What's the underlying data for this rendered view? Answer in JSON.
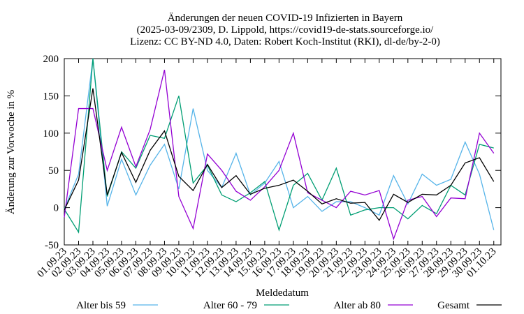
{
  "chart_data": {
    "type": "line",
    "title": [
      "Änderungen der neuen COVID-19 Infizierten in Bayern",
      "(2025-03-09/2309, D. Lippold, https://covid19-de-stats.sourceforge.io/",
      "Lizenz: CC BY-ND 4.0, Daten: Robert Koch-Institut (RKI), dl-de/by-2-0)"
    ],
    "x_label": "Meldedatum",
    "y_label": "Änderung zur Vorwoche in %",
    "categories": [
      "01.09.23",
      "02.09.23",
      "03.09.23",
      "04.09.23",
      "05.09.23",
      "06.09.23",
      "07.09.23",
      "08.09.23",
      "09.09.23",
      "10.09.23",
      "11.09.23",
      "12.09.23",
      "13.09.23",
      "14.09.23",
      "15.09.23",
      "16.09.23",
      "17.09.23",
      "18.09.23",
      "19.09.23",
      "20.09.23",
      "21.09.23",
      "22.09.23",
      "23.09.23",
      "24.09.23",
      "25.09.23",
      "26.09.23",
      "27.09.23",
      "28.09.23",
      "29.09.23",
      "30.09.23",
      "01.10.23"
    ],
    "series": [
      {
        "name": "Alter bis 59",
        "color": "#56b4e9",
        "values": [
          -2,
          45,
          200,
          2,
          65,
          17,
          57,
          85,
          25,
          133,
          50,
          27,
          73,
          17,
          33,
          62,
          0,
          15,
          -5,
          8,
          8,
          0,
          -10,
          43,
          5,
          45,
          30,
          38,
          88,
          45,
          -30
        ]
      },
      {
        "name": "Alter 60 - 79",
        "color": "#009e73",
        "values": [
          -2,
          -33,
          200,
          15,
          75,
          53,
          97,
          93,
          150,
          33,
          57,
          17,
          8,
          20,
          35,
          -30,
          30,
          46,
          10,
          53,
          -10,
          -3,
          0,
          0,
          -15,
          3,
          -8,
          30,
          17,
          85,
          80
        ]
      },
      {
        "name": "Alter ab 80",
        "color": "#9400d3",
        "values": [
          -13,
          133,
          133,
          50,
          108,
          55,
          105,
          185,
          15,
          -28,
          72,
          50,
          22,
          10,
          28,
          50,
          100,
          20,
          10,
          0,
          22,
          17,
          23,
          -42,
          10,
          15,
          -12,
          13,
          12,
          100,
          73
        ]
      },
      {
        "name": "Gesamt",
        "color": "#000000",
        "values": [
          -3,
          37,
          160,
          17,
          74,
          34,
          77,
          103,
          42,
          23,
          58,
          27,
          43,
          18,
          26,
          30,
          37,
          22,
          5,
          12,
          6,
          7,
          -17,
          18,
          7,
          18,
          17,
          30,
          60,
          67,
          35
        ]
      }
    ],
    "ylim": [
      -50,
      200
    ],
    "yticks": [
      -50,
      0,
      50,
      100,
      150,
      200
    ],
    "grid": false
  }
}
